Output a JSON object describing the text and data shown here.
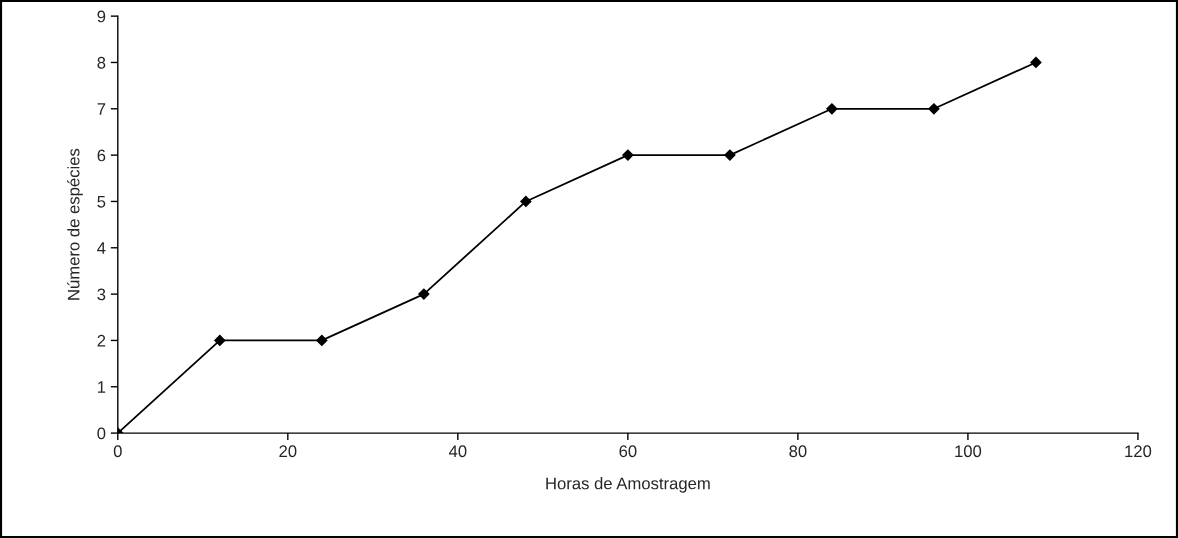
{
  "chart_data": {
    "type": "line",
    "xlabel": "Horas de Amostragem",
    "ylabel": "Número de espécies",
    "x": [
      0,
      12,
      24,
      36,
      48,
      60,
      72,
      84,
      96,
      108
    ],
    "series": [
      {
        "color": "#000000",
        "values": [
          0,
          2,
          2,
          3,
          5,
          6,
          6,
          7,
          7,
          8
        ]
      }
    ],
    "xlim": [
      0,
      120
    ],
    "xticks": [
      0,
      20,
      40,
      60,
      80,
      100,
      120
    ],
    "ylim": [
      0,
      9
    ],
    "yticks": [
      0,
      1,
      2,
      3,
      4,
      5,
      6,
      7,
      8,
      9
    ],
    "grid": false,
    "legend": false,
    "marker": "diamond",
    "line_style": "solid"
  }
}
